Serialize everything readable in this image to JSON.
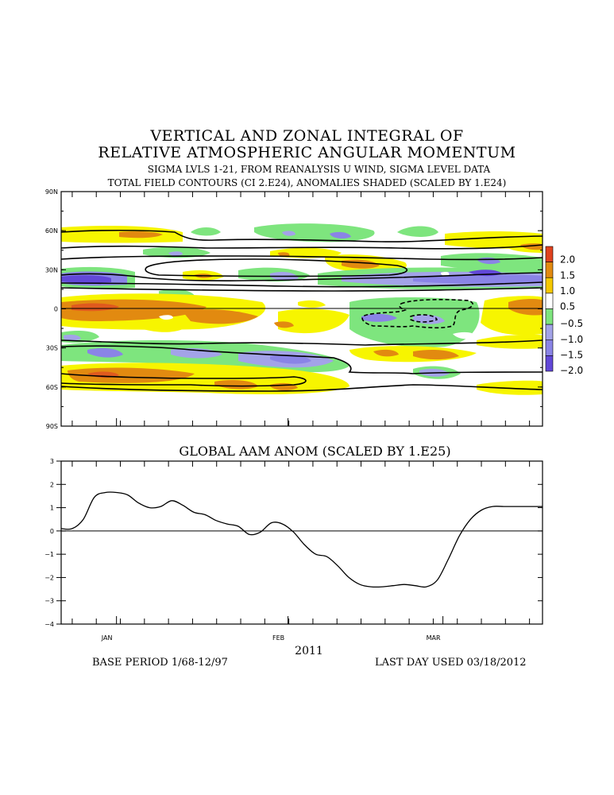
{
  "title_line1": "VERTICAL AND ZONAL INTEGRAL OF",
  "title_line2": "RELATIVE ATMOSPHERIC ANGULAR MOMENTUM",
  "subtitle_line1": "SIGMA LVLS 1-21, FROM REANALYSIS U WIND, SIGMA LEVEL DATA",
  "subtitle_line2": "TOTAL FIELD CONTOURS (CI 2.E24),  ANOMALIES SHADED (SCALED BY 1.E24)",
  "year_label": "2011",
  "base_period": "BASE PERIOD  1/68-12/97",
  "last_day": "LAST DAY USED 03/18/2012",
  "colors": {
    "pos_2": "#e05a1e",
    "pos_15": "#e28a10",
    "pos_10": "#f5d400",
    "pos_05": "#f7f500",
    "neg_05": "#7ee57e",
    "neg_10": "#a3a3e8",
    "neg_15": "#8a84e6",
    "neg_20": "#6248d8",
    "contour": "#000000"
  },
  "chart_data": [
    {
      "type": "heatmap",
      "title": "",
      "y_tick_labels": [
        "90N",
        "60N",
        "30N",
        "0",
        "30S",
        "60S",
        "90S"
      ],
      "y_range": [
        -90,
        90
      ],
      "x_tick_labels": [
        "JAN",
        "FEB",
        "MAR"
      ],
      "colorbar_labels": [
        "2.0",
        "1.5",
        "1.0",
        "0.5",
        "-0.5",
        "-1.0",
        "-1.5",
        "-2.0"
      ],
      "colorbar_colors": [
        "#e0421e",
        "#e28a10",
        "#f5c800",
        "#ffffff",
        "#7ee57e",
        "#a3a3e8",
        "#8a84e6",
        "#6248d8"
      ],
      "contour_interval": "2.E24"
    },
    {
      "type": "line",
      "title": "GLOBAL AAM ANOM (SCALED BY 1.E25)",
      "x_tick_labels": [
        "JAN",
        "FEB",
        "MAR"
      ],
      "y_ticks": [
        3,
        2,
        1,
        0,
        -1,
        -2,
        -3,
        -4
      ],
      "ylim": [
        -4,
        3
      ],
      "x_range_days": [
        -10,
        77
      ],
      "series": [
        {
          "x": [
            -10,
            -8,
            -6,
            -4,
            -2,
            0,
            2,
            4,
            6,
            8,
            10,
            12,
            14,
            16,
            18,
            20,
            22,
            24,
            26,
            28,
            30,
            32,
            34,
            36,
            38,
            40,
            42,
            44,
            46,
            48,
            50,
            52,
            54,
            56,
            58,
            60,
            62,
            64,
            66,
            68,
            70,
            72,
            74,
            76,
            77
          ],
          "y": [
            0.1,
            0.1,
            0.5,
            1.45,
            1.65,
            1.65,
            1.55,
            1.2,
            1.0,
            1.05,
            1.3,
            1.1,
            0.8,
            0.7,
            0.45,
            0.3,
            0.2,
            -0.15,
            -0.05,
            0.35,
            0.3,
            -0.05,
            -0.6,
            -1.0,
            -1.1,
            -1.5,
            -2.0,
            -2.3,
            -2.4,
            -2.4,
            -2.35,
            -2.3,
            -2.35,
            -2.4,
            -2.1,
            -1.2,
            -0.2,
            0.5,
            0.9,
            1.05,
            1.05,
            1.05,
            1.05,
            1.05,
            1.05
          ]
        }
      ]
    }
  ]
}
